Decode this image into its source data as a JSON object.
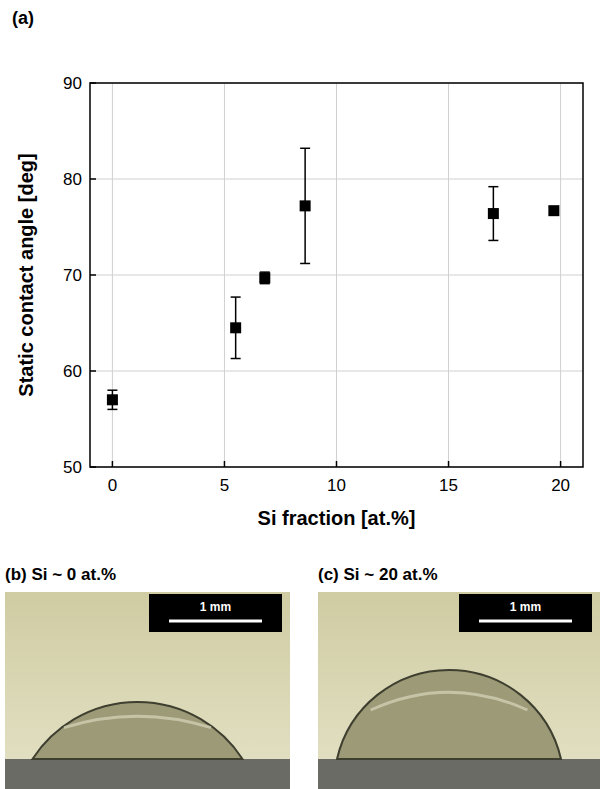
{
  "panel_label": "(a)",
  "chart_data": {
    "type": "scatter",
    "x_label": "Si fraction [at.%]",
    "y_label": "Static contact angle [deg]",
    "x": [
      0,
      5.5,
      6.8,
      8.6,
      17,
      19.7
    ],
    "values": [
      57,
      64.5,
      69.7,
      77.2,
      76.4,
      76.7
    ],
    "errors": [
      1.0,
      3.2,
      0.6,
      6.0,
      2.8,
      0.4
    ],
    "color": "#000000",
    "marker": "square",
    "xlim": [
      -1,
      21
    ],
    "xticks": [
      0,
      5,
      10,
      15,
      20
    ],
    "ylim": [
      50,
      90
    ],
    "yticks": [
      50,
      60,
      70,
      80,
      90
    ],
    "grid": true
  },
  "photos": [
    {
      "label": "(b) Si ~ 0 at.%",
      "scale_bar": "1 mm"
    },
    {
      "label": "(c) Si ~ 20 at.%",
      "scale_bar": "1 mm"
    }
  ]
}
